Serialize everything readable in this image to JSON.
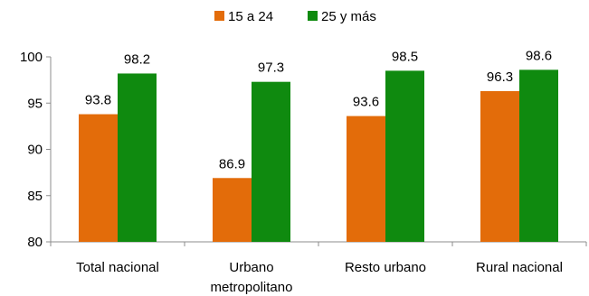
{
  "chart_data": {
    "type": "bar",
    "categories": [
      [
        "Total nacional"
      ],
      [
        "Urbano",
        "metropolitano"
      ],
      [
        "Resto urbano"
      ],
      [
        "Rural nacional"
      ]
    ],
    "series": [
      {
        "name": "15 a 24",
        "values": [
          93.8,
          86.9,
          93.6,
          96.3
        ],
        "labels": [
          "93.8",
          "86.9",
          "93.6",
          "96.3"
        ],
        "color": "#e36c0a"
      },
      {
        "name": "25 y más",
        "values": [
          98.2,
          97.3,
          98.5,
          98.6
        ],
        "labels": [
          "98.2",
          "97.3",
          "98.5",
          "98.6"
        ],
        "color": "#0f8a0f"
      }
    ],
    "ylim": [
      80,
      100
    ],
    "yticks": [
      80,
      85,
      90,
      95,
      100
    ],
    "ytick_labels": [
      "80",
      "85",
      "90",
      "95",
      "100"
    ],
    "grid": false,
    "legend_position": "top-center",
    "title": "",
    "xlabel": "",
    "ylabel": ""
  }
}
